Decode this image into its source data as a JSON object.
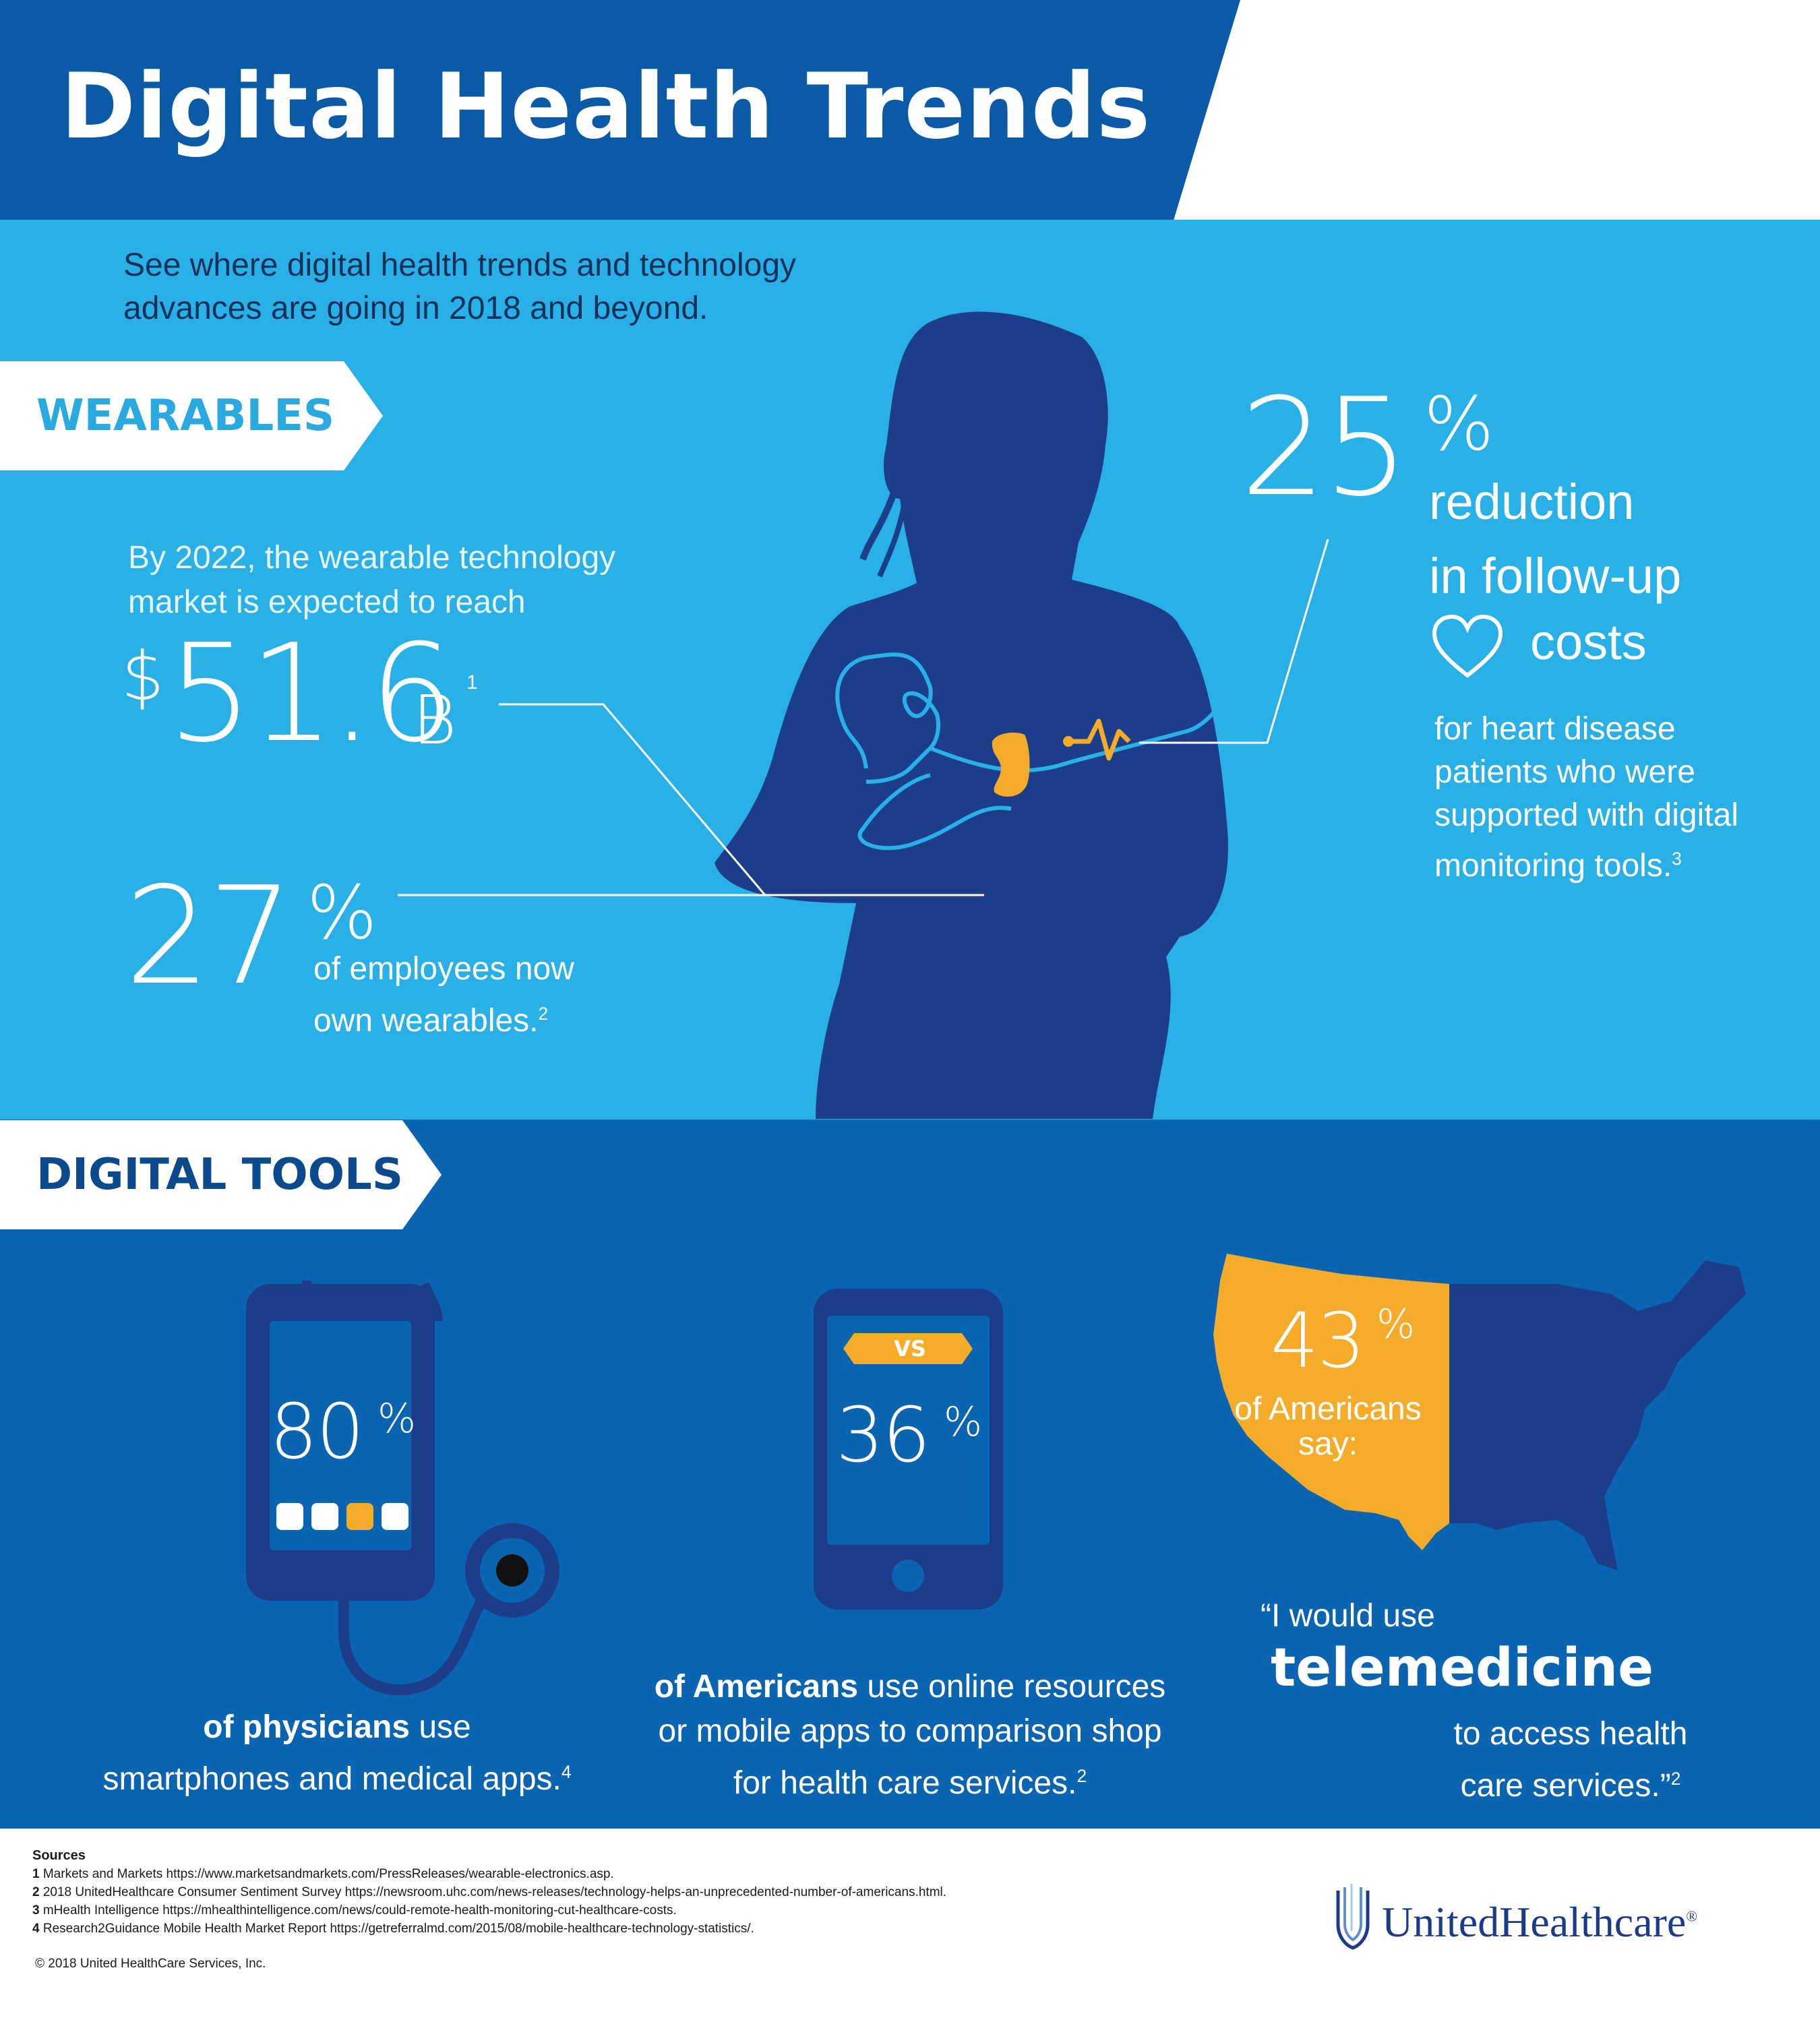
{
  "header": {
    "title": "Digital Health Trends",
    "intro_line1": "See where digital health trends and technology",
    "intro_line2": "advances are going in 2018 and beyond."
  },
  "wearables": {
    "section_label": "WEARABLES",
    "market": {
      "intro_line1": "By 2022, the wearable technology",
      "intro_line2": "market is expected to reach",
      "currency": "$",
      "value": "51.6",
      "unit": "B",
      "footnote": "1"
    },
    "employees": {
      "value": "27",
      "pct": "%",
      "text_line1": "of employees now",
      "text_line2": "own wearables.",
      "footnote": "2"
    },
    "reduction": {
      "value": "25",
      "pct": "%",
      "big_line1": "reduction",
      "big_line2": "in follow-up",
      "big_line3": "costs",
      "small_line1": "for heart disease",
      "small_line2": "patients who were",
      "small_line3": "supported with digital",
      "small_line4": "monitoring tools.",
      "footnote": "3"
    }
  },
  "digital_tools": {
    "section_label": "DIGITAL TOOLS",
    "physicians": {
      "value": "80",
      "pct": "%",
      "caption_bold": "of physicians",
      "caption_rest": " use",
      "caption_line2": "smartphones and medical apps.",
      "footnote": "4"
    },
    "comparison": {
      "badge": "VS",
      "value": "36",
      "pct": "%",
      "caption_bold": "of Americans",
      "caption_rest": " use online resources",
      "caption_line2": "or mobile apps to comparison shop",
      "caption_line3": "for health care services.",
      "footnote": "2"
    },
    "telemedicine": {
      "value": "43",
      "pct": "%",
      "label_line1": "of Americans",
      "label_line2": "say:",
      "quote_lead": "“I would use",
      "quote_big": "telemedicine",
      "quote_line1": "to access health",
      "quote_line2": "care services.”",
      "footnote": "2"
    }
  },
  "footer": {
    "sources_heading": "Sources",
    "sources": [
      {
        "num": "1",
        "text": "Markets and Markets https://www.marketsandmarkets.com/PressReleases/wearable-electronics.asp."
      },
      {
        "num": "2",
        "text": "2018 UnitedHealthcare Consumer Sentiment Survey  https://newsroom.uhc.com/news-releases/technology-helps-an-unprecedented-number-of-americans.html."
      },
      {
        "num": "3",
        "text": "mHealth Intelligence https://mhealthintelligence.com/news/could-remote-health-monitoring-cut-healthcare-costs."
      },
      {
        "num": "4",
        "text": "Research2Guidance Mobile Health Market Report https://getreferralmd.com/2015/08/mobile-healthcare-technology-statistics/."
      }
    ],
    "copyright": "© 2018 United HealthCare Services, Inc.",
    "logo_text": "UnitedHealthcare",
    "logo_mark": "®"
  },
  "colors": {
    "header_blue": "#0b5aa8",
    "wearables_bg": "#29b0e6",
    "tools_bg": "#0b64b0",
    "silhouette": "#1b3d8a",
    "accent_orange": "#f5ac2a",
    "logo_blue": "#1c3a8c"
  }
}
